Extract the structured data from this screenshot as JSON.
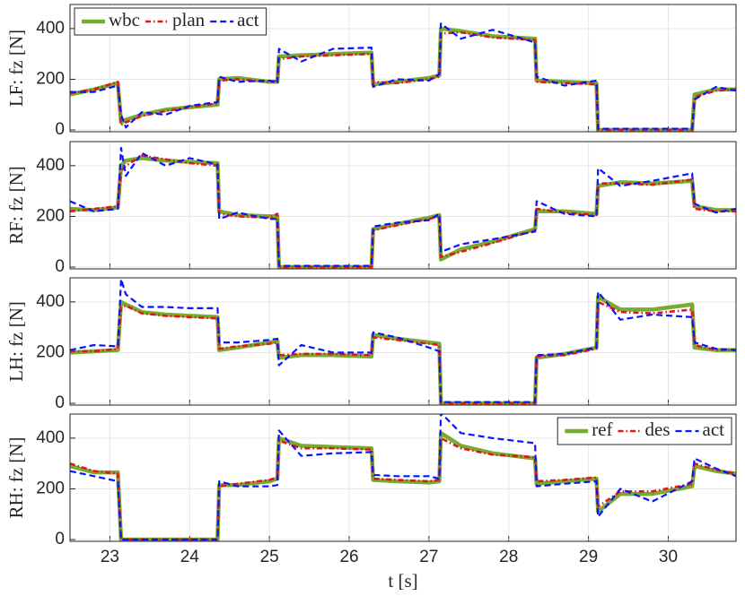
{
  "chart_data": [
    {
      "type": "line",
      "ylabel": "LF: fz [N]",
      "legend": "upper left",
      "ylim": [
        -7,
        495
      ],
      "yticks": [
        0,
        200,
        400
      ],
      "grid": true,
      "xlim": [
        22.5,
        30.85
      ],
      "x": [
        22.5,
        22.8,
        23.1,
        23.14,
        23.2,
        23.4,
        23.7,
        24.0,
        24.35,
        24.37,
        24.6,
        25.0,
        25.1,
        25.12,
        25.4,
        25.8,
        26.28,
        26.3,
        26.6,
        27.0,
        27.13,
        27.15,
        27.4,
        27.8,
        28.33,
        28.35,
        28.7,
        29.1,
        29.12,
        29.4,
        29.8,
        30.3,
        30.33,
        30.6,
        30.85
      ],
      "series": [
        {
          "name": "wbc",
          "color": "#77ac30",
          "values": [
            140,
            160,
            185,
            30,
            40,
            60,
            80,
            90,
            100,
            200,
            205,
            190,
            190,
            290,
            295,
            300,
            305,
            180,
            190,
            205,
            215,
            400,
            390,
            370,
            360,
            195,
            190,
            185,
            0,
            0,
            0,
            0,
            140,
            160,
            160
          ]
        },
        {
          "name": "plan",
          "color": "#e8141c",
          "values": [
            145,
            160,
            190,
            20,
            30,
            55,
            75,
            90,
            105,
            195,
            200,
            190,
            195,
            280,
            290,
            295,
            300,
            190,
            185,
            200,
            210,
            380,
            385,
            365,
            355,
            190,
            185,
            180,
            0,
            0,
            0,
            0,
            130,
            155,
            160
          ]
        },
        {
          "name": "act",
          "color": "#0a14ff",
          "values": [
            150,
            150,
            175,
            60,
            10,
            70,
            60,
            95,
            110,
            210,
            190,
            195,
            185,
            320,
            270,
            320,
            325,
            170,
            200,
            195,
            220,
            420,
            360,
            395,
            345,
            210,
            175,
            195,
            5,
            5,
            5,
            5,
            120,
            170,
            155
          ]
        }
      ]
    },
    {
      "type": "line",
      "ylabel": "RF: fz [N]",
      "ylim": [
        -7,
        495
      ],
      "yticks": [
        0,
        200,
        400
      ],
      "grid": true,
      "xlim": [
        22.5,
        30.85
      ],
      "x": [
        22.5,
        22.8,
        23.1,
        23.14,
        23.2,
        23.4,
        23.7,
        24.0,
        24.35,
        24.37,
        24.6,
        25.0,
        25.1,
        25.12,
        25.4,
        25.8,
        26.28,
        26.3,
        26.6,
        27.0,
        27.13,
        27.15,
        27.4,
        27.8,
        28.33,
        28.35,
        28.7,
        29.1,
        29.12,
        29.4,
        29.8,
        30.3,
        30.33,
        30.6,
        30.85
      ],
      "series": [
        {
          "name": "wbc",
          "color": "#77ac30",
          "values": [
            230,
            225,
            235,
            400,
            420,
            430,
            420,
            415,
            410,
            220,
            205,
            200,
            200,
            0,
            0,
            0,
            0,
            150,
            170,
            195,
            205,
            30,
            70,
            100,
            150,
            220,
            220,
            210,
            320,
            335,
            330,
            340,
            240,
            225,
            225
          ]
        },
        {
          "name": "plan",
          "color": "#e8141c",
          "values": [
            220,
            230,
            240,
            380,
            400,
            440,
            425,
            410,
            400,
            210,
            200,
            195,
            210,
            0,
            0,
            0,
            0,
            145,
            165,
            190,
            200,
            40,
            60,
            95,
            145,
            230,
            215,
            205,
            330,
            330,
            325,
            345,
            230,
            220,
            220
          ]
        },
        {
          "name": "act",
          "color": "#0a14ff",
          "values": [
            260,
            220,
            230,
            470,
            360,
            450,
            400,
            430,
            405,
            190,
            215,
            190,
            190,
            5,
            5,
            5,
            5,
            160,
            175,
            185,
            210,
            60,
            90,
            110,
            140,
            260,
            210,
            200,
            390,
            320,
            340,
            370,
            250,
            215,
            230
          ]
        }
      ]
    },
    {
      "type": "line",
      "ylabel": "LH: fz [N]",
      "ylim": [
        -7,
        495
      ],
      "yticks": [
        0,
        200,
        400
      ],
      "grid": true,
      "xlim": [
        22.5,
        30.85
      ],
      "x": [
        22.5,
        22.8,
        23.1,
        23.14,
        23.2,
        23.4,
        23.7,
        24.0,
        24.35,
        24.37,
        24.6,
        25.0,
        25.1,
        25.12,
        25.4,
        25.8,
        26.28,
        26.3,
        26.6,
        27.0,
        27.13,
        27.15,
        27.4,
        27.8,
        28.33,
        28.35,
        28.7,
        29.1,
        29.12,
        29.4,
        29.8,
        30.3,
        30.33,
        30.6,
        30.85
      ],
      "series": [
        {
          "name": "wbc",
          "color": "#77ac30",
          "values": [
            200,
            205,
            210,
            400,
            390,
            360,
            350,
            345,
            340,
            210,
            220,
            240,
            245,
            180,
            190,
            190,
            185,
            270,
            255,
            240,
            235,
            0,
            0,
            0,
            0,
            180,
            195,
            220,
            420,
            370,
            370,
            390,
            220,
            210,
            210
          ]
        },
        {
          "name": "plan",
          "color": "#e8141c",
          "values": [
            205,
            205,
            215,
            380,
            385,
            355,
            345,
            340,
            335,
            215,
            225,
            235,
            240,
            190,
            195,
            195,
            190,
            260,
            250,
            235,
            230,
            0,
            0,
            0,
            0,
            185,
            190,
            215,
            400,
            360,
            355,
            370,
            230,
            210,
            210
          ]
        },
        {
          "name": "act",
          "color": "#0a14ff",
          "values": [
            210,
            230,
            225,
            490,
            430,
            380,
            380,
            375,
            375,
            240,
            240,
            250,
            255,
            150,
            230,
            200,
            200,
            280,
            260,
            220,
            205,
            5,
            5,
            5,
            5,
            190,
            195,
            220,
            440,
            330,
            350,
            340,
            240,
            215,
            210
          ]
        }
      ]
    },
    {
      "type": "line",
      "ylabel": "RH: fz [N]",
      "xlabel": "t [s]",
      "legend": "upper right",
      "ylim": [
        -7,
        495
      ],
      "yticks": [
        0,
        200,
        400
      ],
      "grid": true,
      "xlim": [
        22.5,
        30.85
      ],
      "xticks": [
        23,
        24,
        25,
        26,
        27,
        28,
        29,
        30
      ],
      "x": [
        22.5,
        22.8,
        23.1,
        23.14,
        23.2,
        23.4,
        23.7,
        24.0,
        24.35,
        24.37,
        24.6,
        25.0,
        25.1,
        25.12,
        25.4,
        25.8,
        26.28,
        26.3,
        26.6,
        27.0,
        27.13,
        27.15,
        27.4,
        27.8,
        28.33,
        28.35,
        28.7,
        29.1,
        29.12,
        29.4,
        29.8,
        30.3,
        30.33,
        30.6,
        30.85
      ],
      "series": [
        {
          "name": "ref",
          "color": "#77ac30",
          "values": [
            290,
            265,
            265,
            0,
            0,
            0,
            0,
            0,
            0,
            215,
            215,
            230,
            240,
            400,
            370,
            365,
            360,
            235,
            230,
            225,
            230,
            420,
            370,
            340,
            320,
            220,
            230,
            240,
            110,
            180,
            180,
            210,
            290,
            270,
            260
          ]
        },
        {
          "name": "des",
          "color": "#e8141c",
          "values": [
            300,
            270,
            260,
            0,
            0,
            0,
            0,
            0,
            0,
            210,
            220,
            235,
            245,
            390,
            360,
            360,
            355,
            240,
            235,
            230,
            235,
            400,
            360,
            335,
            325,
            230,
            235,
            245,
            130,
            190,
            190,
            220,
            300,
            275,
            260
          ]
        },
        {
          "name": "act",
          "color": "#0a14ff",
          "values": [
            270,
            250,
            230,
            0,
            0,
            0,
            0,
            0,
            0,
            230,
            210,
            210,
            215,
            430,
            330,
            340,
            345,
            255,
            250,
            250,
            240,
            500,
            420,
            400,
            380,
            210,
            220,
            230,
            90,
            200,
            150,
            230,
            320,
            280,
            250
          ]
        }
      ]
    }
  ]
}
